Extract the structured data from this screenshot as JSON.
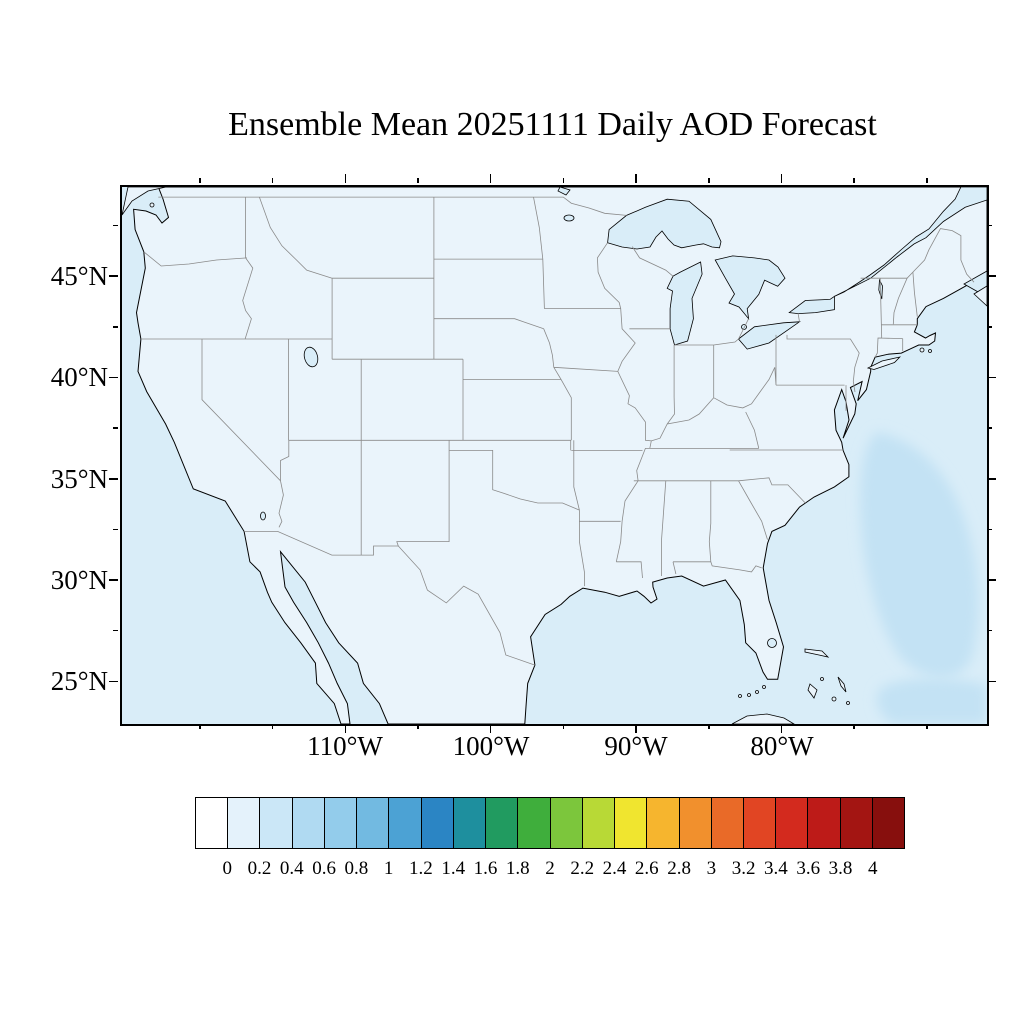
{
  "title": "Ensemble Mean 20251111 Daily AOD Forecast",
  "axes": {
    "lat_labels": [
      "45°N",
      "40°N",
      "35°N",
      "30°N",
      "25°N"
    ],
    "lon_labels": [
      "110°W",
      "100°W",
      "90°W",
      "80°W"
    ]
  },
  "colorbar": {
    "tick_labels": [
      "0",
      "0.2",
      "0.4",
      "0.6",
      "0.8",
      "1",
      "1.2",
      "1.4",
      "1.6",
      "1.8",
      "2",
      "2.2",
      "2.4",
      "2.6",
      "2.8",
      "3",
      "3.2",
      "3.4",
      "3.6",
      "3.8",
      "4"
    ],
    "colors": [
      "#FFFFFF",
      "#E4F2FB",
      "#CBE7F7",
      "#B0DAF2",
      "#93CCEB",
      "#72BAE1",
      "#4CA2D4",
      "#2B85C4",
      "#1E8F9E",
      "#219B60",
      "#3FAE3C",
      "#7CC63C",
      "#B8D936",
      "#F0E52F",
      "#F6B52E",
      "#F1902D",
      "#E96A28",
      "#E14523",
      "#D32A1E",
      "#BD1B18",
      "#A31512",
      "#870F0D"
    ]
  },
  "map_colors": {
    "ocean": "#D9EDF8",
    "land": "#EAF4FB",
    "aod_patch": "#C3E2F4",
    "coast": "#000000",
    "state_border": "#8A8A8A"
  },
  "chart_data": {
    "type": "heatmap",
    "title": "Ensemble Mean 20251111 Daily AOD Forecast",
    "variable": "Aerosol Optical Depth (AOD), daily ensemble mean forecast",
    "region": "Contiguous United States and surrounding waters",
    "x_axis": {
      "tick_labels": [
        "110°W",
        "100°W",
        "90°W",
        "80°W"
      ],
      "lon_range_deg_west": [
        125.5,
        66.0
      ]
    },
    "y_axis": {
      "tick_labels": [
        "45°N",
        "40°N",
        "35°N",
        "30°N",
        "25°N"
      ],
      "lat_range_deg_north": [
        23.0,
        49.5
      ]
    },
    "colorbar_levels": [
      0,
      0.2,
      0.4,
      0.6,
      0.8,
      1,
      1.2,
      1.4,
      1.6,
      1.8,
      2,
      2.2,
      2.4,
      2.6,
      2.8,
      3,
      3.2,
      3.4,
      3.6,
      3.8,
      4
    ],
    "legend_position": "bottom",
    "grid": false,
    "field_summary": "AOD falls in the lowest bins (about 0 to 0.2, palest blue/white shades) over essentially the entire map; slightly higher values (about 0.2 to 0.4) appear offshore in the western Atlantic southeast of the US coastline and near the lower-right corner of the domain."
  }
}
